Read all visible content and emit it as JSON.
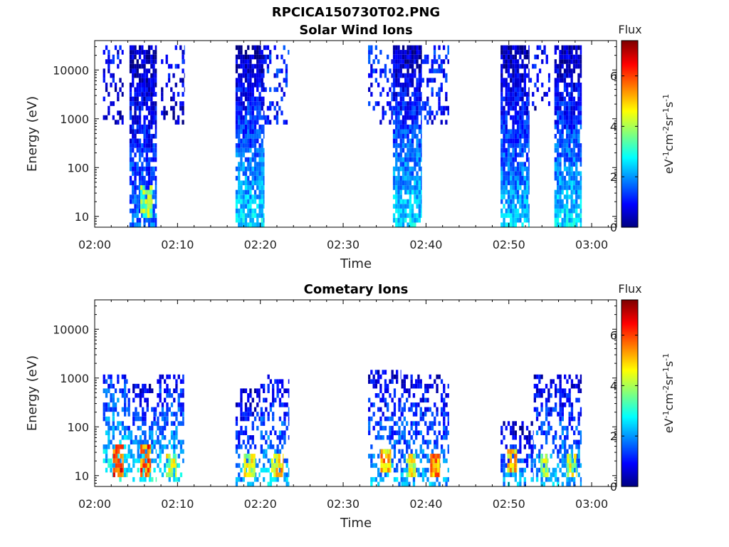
{
  "figure": {
    "title": "RPCICA150730T02.PNG"
  },
  "colormap": {
    "name": "jet",
    "stops": [
      "#00007f",
      "#0000ff",
      "#007fff",
      "#00ffff",
      "#7fff7f",
      "#ffff00",
      "#ff7f00",
      "#ff0000",
      "#7f0000"
    ]
  },
  "chart_data": [
    {
      "type": "heatmap",
      "title": "Solar Wind Ions",
      "xlabel": "Time",
      "ylabel": "Energy (eV)",
      "x_ticks": [
        "02:00",
        "02:10",
        "02:20",
        "02:30",
        "02:40",
        "02:50",
        "03:00"
      ],
      "x_range_min": [
        0,
        63
      ],
      "y_scale": "log",
      "y_range_eV": [
        6,
        40000
      ],
      "y_ticks": [
        {
          "value": 10,
          "label": "10"
        },
        {
          "value": 100,
          "label": "100"
        },
        {
          "value": 1000,
          "label": "1000"
        },
        {
          "value": 10000,
          "label": "10000"
        }
      ],
      "colorbar": {
        "title": "Flux",
        "range": [
          0,
          7.4
        ],
        "ticks": [
          0,
          2,
          4,
          6
        ],
        "units": "eV-1cm-2sr-1s-1"
      },
      "bursts": [
        {
          "t0": 1.0,
          "t1": 3.5,
          "e_low": 700,
          "e_high": 30000,
          "flux_low": 0.4,
          "flux_high": 1.0,
          "density": 0.35
        },
        {
          "t0": 4.2,
          "t1": 7.5,
          "e_low": 6,
          "e_high": 30000,
          "flux_low": 1.8,
          "flux_high": 0.3,
          "density": 0.8
        },
        {
          "t0": 8.0,
          "t1": 10.8,
          "e_low": 700,
          "e_high": 30000,
          "flux_low": 0.4,
          "flux_high": 1.0,
          "density": 0.25
        },
        {
          "t0": 17.0,
          "t1": 20.5,
          "e_low": 6,
          "e_high": 30000,
          "flux_low": 2.6,
          "flux_high": 0.3,
          "density": 0.85
        },
        {
          "t0": 20.5,
          "t1": 23.5,
          "e_low": 700,
          "e_high": 30000,
          "flux_low": 0.9,
          "flux_high": 1.2,
          "density": 0.3
        },
        {
          "t0": 33.0,
          "t1": 36.0,
          "e_low": 700,
          "e_high": 30000,
          "flux_low": 0.8,
          "flux_high": 1.2,
          "density": 0.3
        },
        {
          "t0": 36.0,
          "t1": 39.5,
          "e_low": 6,
          "e_high": 30000,
          "flux_low": 2.6,
          "flux_high": 0.3,
          "density": 0.85
        },
        {
          "t0": 39.5,
          "t1": 42.8,
          "e_low": 700,
          "e_high": 30000,
          "flux_low": 0.9,
          "flux_high": 1.2,
          "density": 0.3
        },
        {
          "t0": 49.0,
          "t1": 52.5,
          "e_low": 6,
          "e_high": 30000,
          "flux_low": 2.4,
          "flux_high": 0.3,
          "density": 0.85
        },
        {
          "t0": 52.5,
          "t1": 55.0,
          "e_low": 1500,
          "e_high": 30000,
          "flux_low": 0.6,
          "flux_high": 1.0,
          "density": 0.25
        },
        {
          "t0": 55.5,
          "t1": 58.8,
          "e_low": 6,
          "e_high": 30000,
          "flux_low": 2.6,
          "flux_high": 0.3,
          "density": 0.85
        }
      ],
      "hotspots": [
        {
          "t0": 5.5,
          "t1": 7.0,
          "e_low": 10,
          "e_high": 40,
          "flux": 4.6
        }
      ]
    },
    {
      "type": "heatmap",
      "title": "Cometary Ions",
      "xlabel": "Time",
      "ylabel": "Energy (eV)",
      "x_ticks": [
        "02:00",
        "02:10",
        "02:20",
        "02:30",
        "02:40",
        "02:50",
        "03:00"
      ],
      "x_range_min": [
        0,
        63
      ],
      "y_scale": "log",
      "y_range_eV": [
        6,
        40000
      ],
      "y_ticks": [
        {
          "value": 10,
          "label": "10"
        },
        {
          "value": 100,
          "label": "100"
        },
        {
          "value": 1000,
          "label": "1000"
        },
        {
          "value": 10000,
          "label": "10000"
        }
      ],
      "colorbar": {
        "title": "Flux",
        "range": [
          0,
          7.4
        ],
        "ticks": [
          0,
          2,
          4,
          6
        ],
        "units": "eV-1cm-2sr-1s-1"
      },
      "bursts": [
        {
          "t0": 1.0,
          "t1": 4.0,
          "e_low": 8,
          "e_high": 1200,
          "flux_low": 2.8,
          "flux_high": 1.2,
          "density": 0.45
        },
        {
          "t0": 4.0,
          "t1": 7.5,
          "e_low": 8,
          "e_high": 700,
          "flux_low": 2.8,
          "flux_high": 0.6,
          "density": 0.5
        },
        {
          "t0": 7.5,
          "t1": 10.8,
          "e_low": 8,
          "e_high": 1300,
          "flux_low": 2.6,
          "flux_high": 0.8,
          "density": 0.45
        },
        {
          "t0": 17.0,
          "t1": 20.0,
          "e_low": 6,
          "e_high": 600,
          "flux_low": 2.2,
          "flux_high": 0.4,
          "density": 0.45
        },
        {
          "t0": 20.0,
          "t1": 23.5,
          "e_low": 6,
          "e_high": 1300,
          "flux_low": 2.4,
          "flux_high": 0.7,
          "density": 0.45
        },
        {
          "t0": 33.0,
          "t1": 37.0,
          "e_low": 6,
          "e_high": 1500,
          "flux_low": 2.2,
          "flux_high": 0.6,
          "density": 0.45
        },
        {
          "t0": 37.0,
          "t1": 42.8,
          "e_low": 6,
          "e_high": 1300,
          "flux_low": 2.2,
          "flux_high": 0.6,
          "density": 0.45
        },
        {
          "t0": 49.0,
          "t1": 53.0,
          "e_low": 6,
          "e_high": 120,
          "flux_low": 2.2,
          "flux_high": 0.4,
          "density": 0.5
        },
        {
          "t0": 53.0,
          "t1": 58.8,
          "e_low": 6,
          "e_high": 1300,
          "flux_low": 2.2,
          "flux_high": 0.6,
          "density": 0.45
        }
      ],
      "hotspots": [
        {
          "t0": 2.2,
          "t1": 3.5,
          "e_low": 10,
          "e_high": 45,
          "flux": 6.9
        },
        {
          "t0": 5.5,
          "t1": 6.8,
          "e_low": 10,
          "e_high": 45,
          "flux": 6.6
        },
        {
          "t0": 8.6,
          "t1": 9.9,
          "e_low": 10,
          "e_high": 30,
          "flux": 5.0
        },
        {
          "t0": 18.0,
          "t1": 19.4,
          "e_low": 10,
          "e_high": 30,
          "flux": 5.2
        },
        {
          "t0": 21.3,
          "t1": 22.8,
          "e_low": 10,
          "e_high": 30,
          "flux": 5.8
        },
        {
          "t0": 34.5,
          "t1": 35.8,
          "e_low": 12,
          "e_high": 35,
          "flux": 6.0
        },
        {
          "t0": 37.6,
          "t1": 38.8,
          "e_low": 10,
          "e_high": 30,
          "flux": 5.2
        },
        {
          "t0": 40.5,
          "t1": 41.7,
          "e_low": 10,
          "e_high": 30,
          "flux": 6.2
        },
        {
          "t0": 49.8,
          "t1": 51.0,
          "e_low": 12,
          "e_high": 35,
          "flux": 5.8
        },
        {
          "t0": 53.8,
          "t1": 54.8,
          "e_low": 10,
          "e_high": 30,
          "flux": 5.0
        },
        {
          "t0": 57.0,
          "t1": 58.2,
          "e_low": 10,
          "e_high": 30,
          "flux": 5.0
        }
      ]
    }
  ]
}
